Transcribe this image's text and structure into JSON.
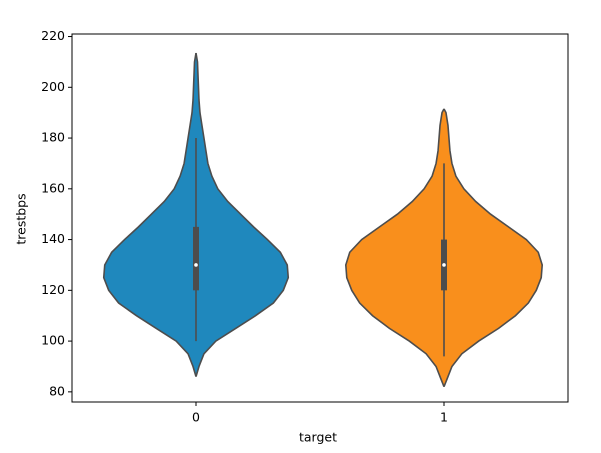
{
  "chart_data": {
    "type": "violin",
    "xlabel": "target",
    "ylabel": "trestbps",
    "categories": [
      "0",
      "1"
    ],
    "ylim": [
      76,
      221
    ],
    "yticks": [
      80,
      100,
      120,
      140,
      160,
      180,
      200,
      220
    ],
    "edge_color": "#4d4d4d",
    "violins": [
      {
        "color": "#1f88bd",
        "kde_y": [
          86,
          90,
          95,
          100,
          105,
          110,
          115,
          120,
          125,
          130,
          135,
          140,
          145,
          150,
          155,
          160,
          165,
          170,
          175,
          180,
          185,
          190,
          195,
          200,
          205,
          210,
          213.5
        ],
        "kde_width": [
          0,
          3,
          8,
          20,
          40,
          60,
          78,
          88,
          93,
          92,
          85,
          72,
          58,
          45,
          32,
          22,
          16,
          12,
          10,
          8,
          6,
          4,
          3,
          2.5,
          2,
          1.5,
          0
        ],
        "whislo": 100,
        "q1": 120,
        "median": 130,
        "q3": 145,
        "whishi": 180
      },
      {
        "color": "#f98f1c",
        "kde_y": [
          82,
          85,
          90,
          95,
          100,
          105,
          110,
          115,
          120,
          125,
          130,
          135,
          140,
          145,
          150,
          155,
          160,
          165,
          170,
          175,
          180,
          185,
          190,
          191.5
        ],
        "kde_width": [
          0,
          3,
          8,
          18,
          35,
          55,
          72,
          85,
          93,
          98,
          99,
          95,
          83,
          65,
          47,
          32,
          20,
          12,
          8,
          6,
          5,
          4,
          2,
          0
        ],
        "whislo": 94,
        "q1": 120,
        "median": 130,
        "q3": 140,
        "whishi": 170
      }
    ]
  }
}
